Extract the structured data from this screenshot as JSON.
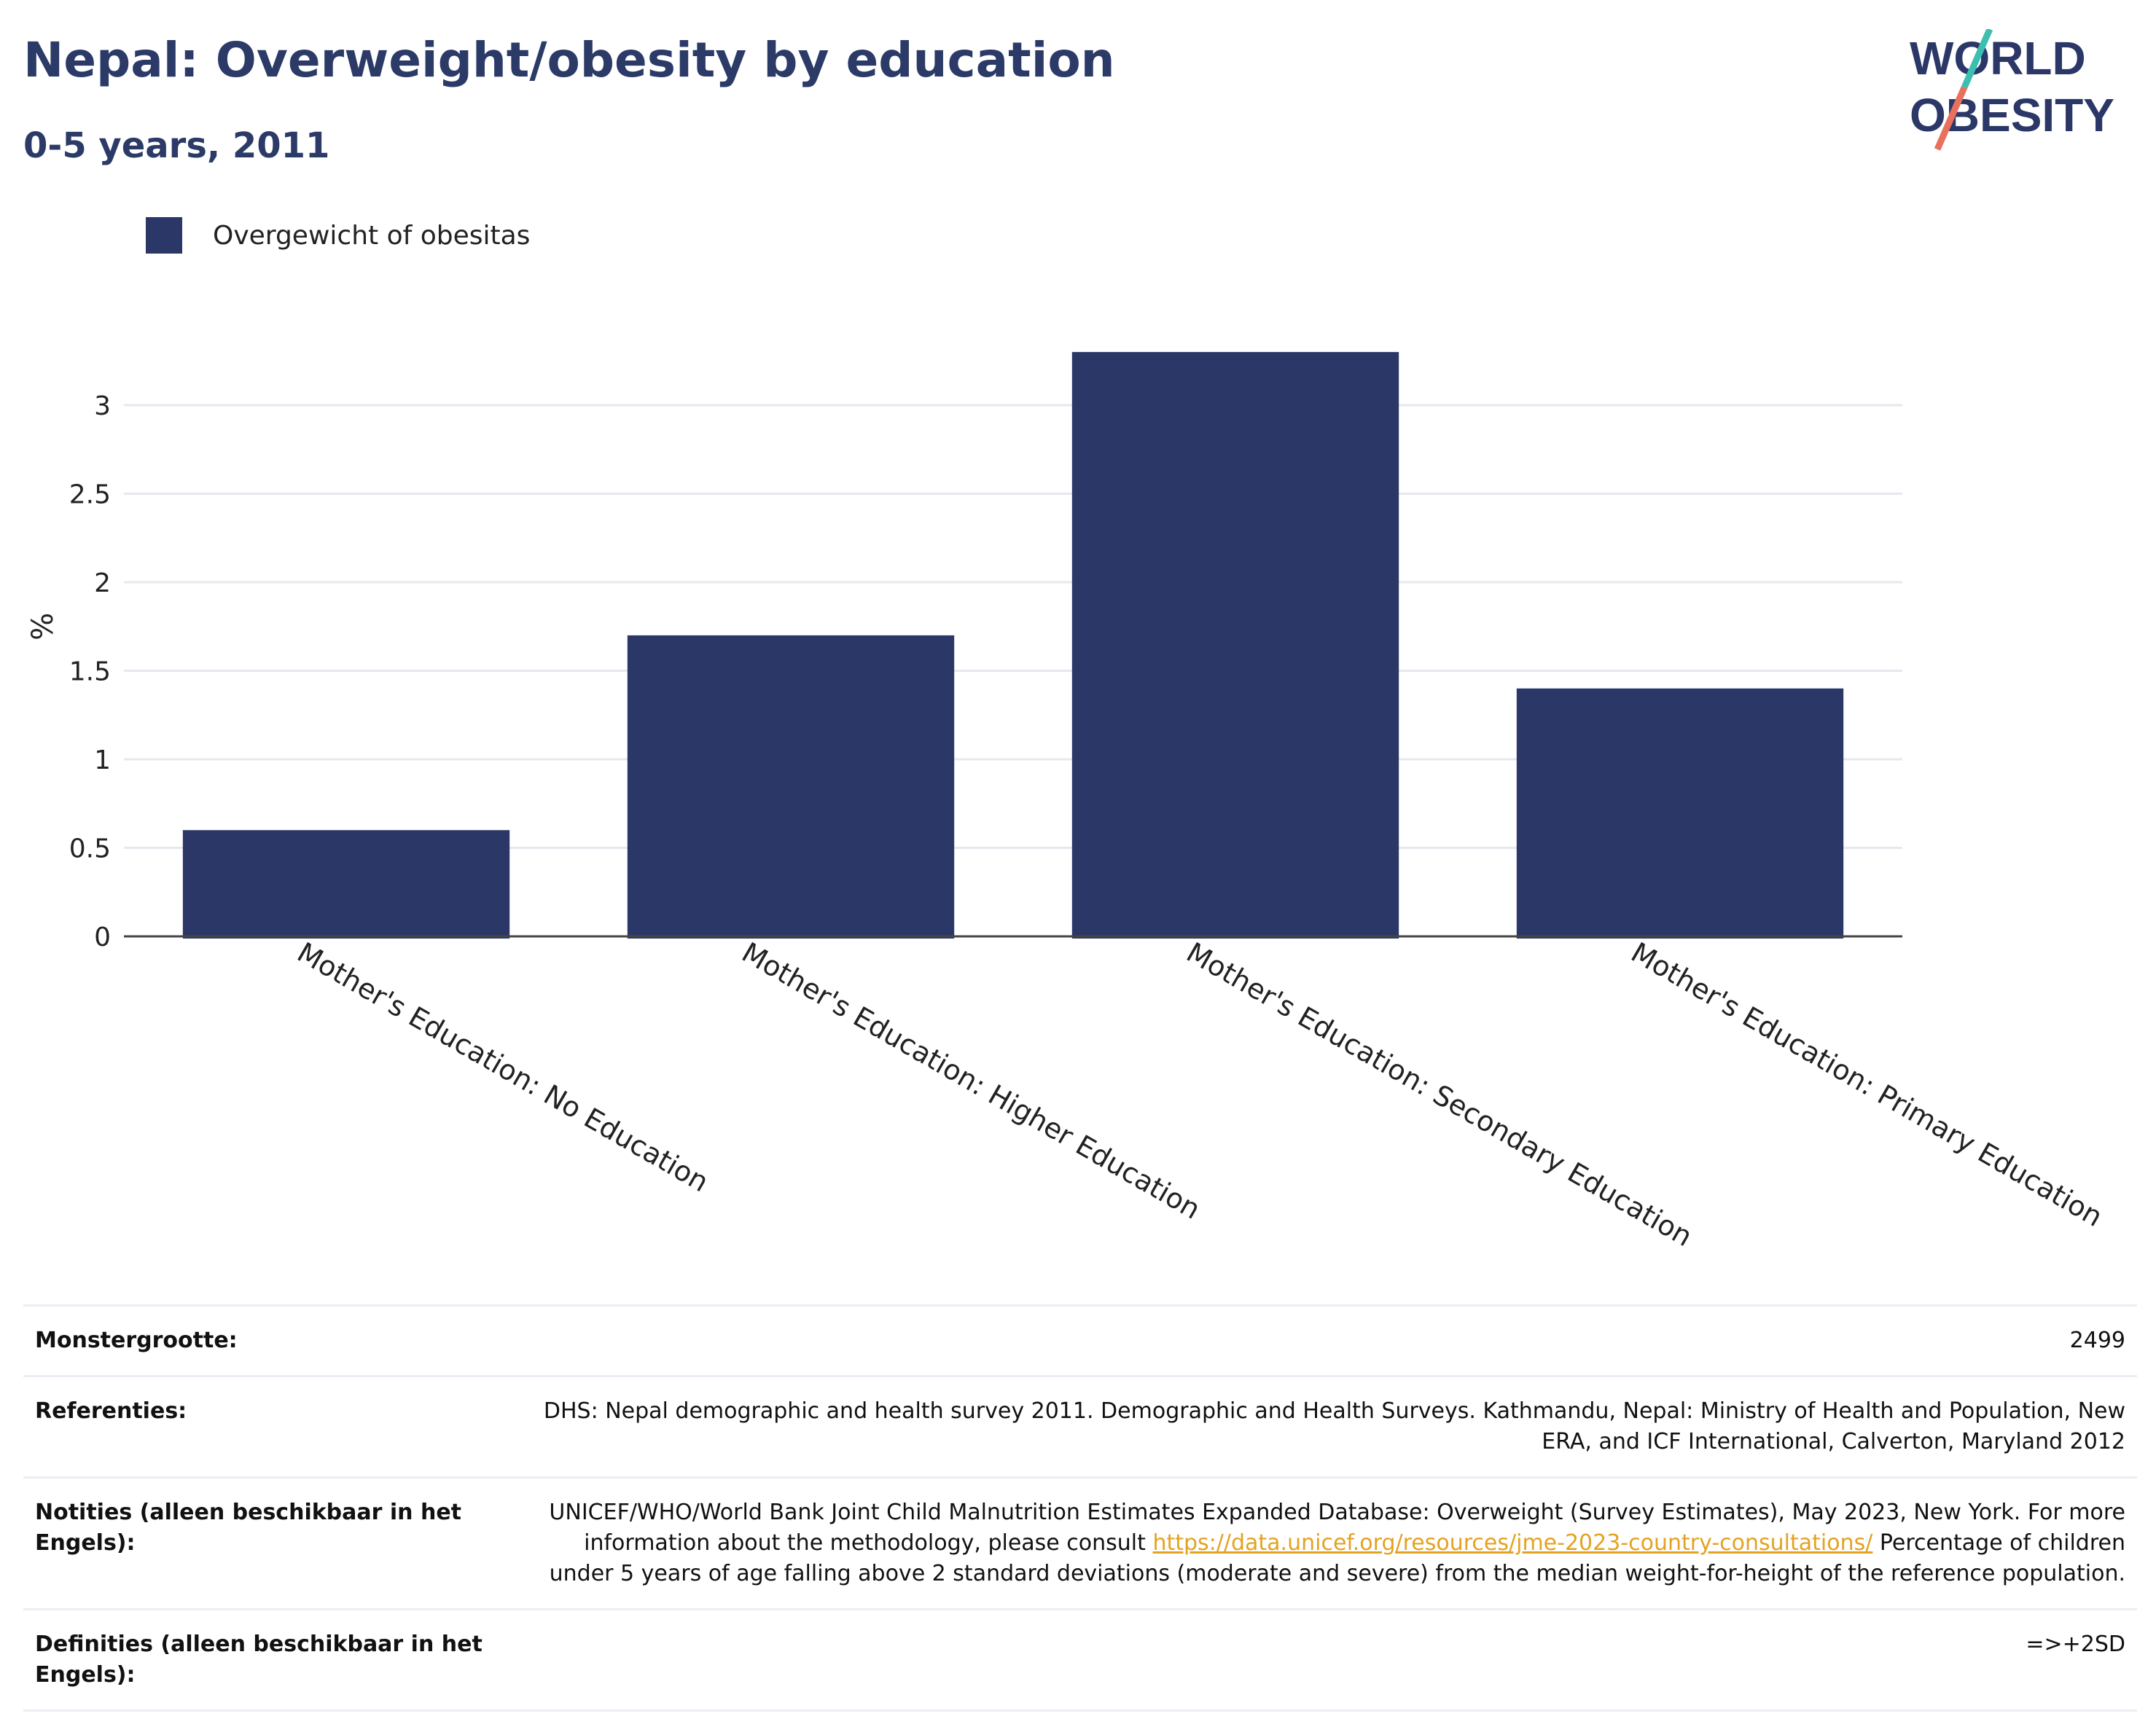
{
  "title": "Nepal: Overweight/obesity by education",
  "subtitle": "0-5 years, 2011",
  "logo": {
    "line1": "WORLD",
    "line2": "OBESITY",
    "colors": {
      "text": "#2b3767",
      "accent1": "#3cbfb0",
      "accent2": "#e8705e"
    }
  },
  "legend": {
    "label": "Overgewicht of obesitas",
    "color": "#2b3767"
  },
  "chart_data": {
    "type": "bar",
    "categories": [
      "Mother's Education: No Education",
      "Mother's Education: Higher Education",
      "Mother's Education: Secondary Education",
      "Mother's Education: Primary Education"
    ],
    "series": [
      {
        "name": "Overgewicht of obesitas",
        "values": [
          0.6,
          1.7,
          3.3,
          1.4
        ],
        "color": "#2b3767"
      }
    ],
    "ylabel": "%",
    "ylim": [
      0,
      3.3
    ],
    "yticks": [
      0,
      0.5,
      1,
      1.5,
      2,
      2.5,
      3
    ],
    "ytick_labels": [
      "0",
      "0.5",
      "1",
      "1.5",
      "2",
      "2.5",
      "3"
    ],
    "grid": true,
    "legend_position": "top-left"
  },
  "table": [
    {
      "key": "Monstergrootte:",
      "value": "2499"
    },
    {
      "key": "Referenties:",
      "value": "DHS: Nepal demographic and health survey 2011. Demographic and Health Surveys. Kathmandu, Nepal: Ministry of Health and Population, New ERA, and ICF International, Calverton, Maryland 2012"
    },
    {
      "key": "Notities (alleen beschikbaar in het Engels):",
      "value_before": "UNICEF/WHO/World Bank Joint Child Malnutrition Estimates Expanded Database: Overweight (Survey Estimates), May 2023, New York. For more information about the methodology, please consult ",
      "link": "https://data.unicef.org/resources/jme-2023-country-consultations/",
      "value_after": " Percentage of children under 5 years of age falling above 2 standard deviations (moderate and severe) from the median weight-for-height of the reference population."
    },
    {
      "key": "Definities (alleen beschikbaar in het Engels):",
      "value": "=>+2SD"
    }
  ]
}
